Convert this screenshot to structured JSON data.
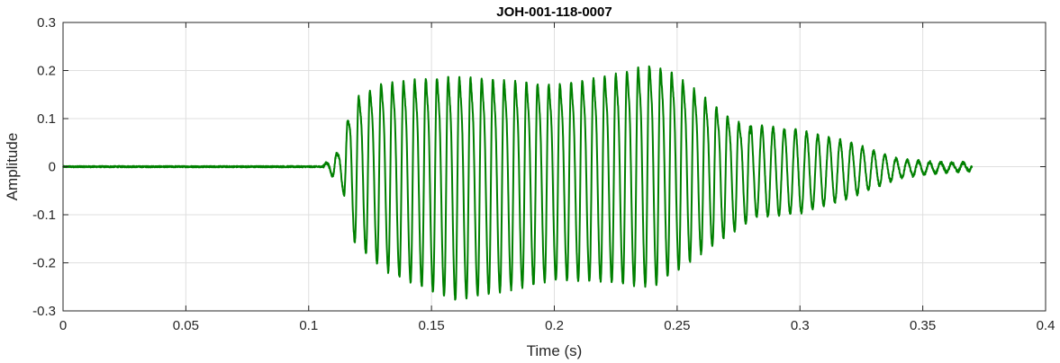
{
  "chart_data": {
    "type": "line",
    "title": "JOH-001-118-0007",
    "xlabel": "Time (s)",
    "ylabel": "Amplitude",
    "xlim": [
      0,
      0.4
    ],
    "ylim": [
      -0.3,
      0.3
    ],
    "grid": true,
    "xticks": [
      0,
      0.05,
      0.1,
      0.15,
      0.2,
      0.25,
      0.3,
      0.35,
      0.4
    ],
    "xtick_labels": [
      "0",
      "0.05",
      "0.1",
      "0.15",
      "0.2",
      "0.25",
      "0.3",
      "0.35",
      "0.4"
    ],
    "yticks": [
      0.3,
      0.2,
      0.1,
      0,
      -0.1,
      -0.2,
      -0.3
    ],
    "ytick_labels": [
      "0.3",
      "0.2",
      "0.1",
      "0",
      "-0.1",
      "-0.2",
      "-0.3"
    ],
    "series": [
      {
        "color": "#008000",
        "signal": {
          "x_start": 0,
          "x_end": 0.37,
          "onset": 0.106,
          "envelope": [
            [
              0.0,
              0.002
            ],
            [
              0.106,
              0.004
            ],
            [
              0.11,
              0.02
            ],
            [
              0.114,
              0.05
            ],
            [
              0.117,
              0.14
            ],
            [
              0.12,
              0.16
            ],
            [
              0.13,
              0.2
            ],
            [
              0.15,
              0.23
            ],
            [
              0.16,
              0.24
            ],
            [
              0.175,
              0.23
            ],
            [
              0.2,
              0.21
            ],
            [
              0.22,
              0.22
            ],
            [
              0.24,
              0.24
            ],
            [
              0.25,
              0.21
            ],
            [
              0.26,
              0.17
            ],
            [
              0.27,
              0.13
            ],
            [
              0.28,
              0.1
            ],
            [
              0.3,
              0.09
            ],
            [
              0.32,
              0.06
            ],
            [
              0.33,
              0.04
            ],
            [
              0.34,
              0.02
            ],
            [
              0.35,
              0.014
            ],
            [
              0.36,
              0.01
            ],
            [
              0.37,
              0.008
            ]
          ],
          "offset_points": [
            [
              0.0,
              0.0
            ],
            [
              0.12,
              0.0
            ],
            [
              0.16,
              -0.03
            ],
            [
              0.2,
              -0.02
            ],
            [
              0.25,
              0.0
            ],
            [
              0.27,
              -0.01
            ],
            [
              0.3,
              -0.01
            ],
            [
              0.37,
              0.0
            ]
          ],
          "cycle_period": 0.00455
        }
      }
    ]
  }
}
